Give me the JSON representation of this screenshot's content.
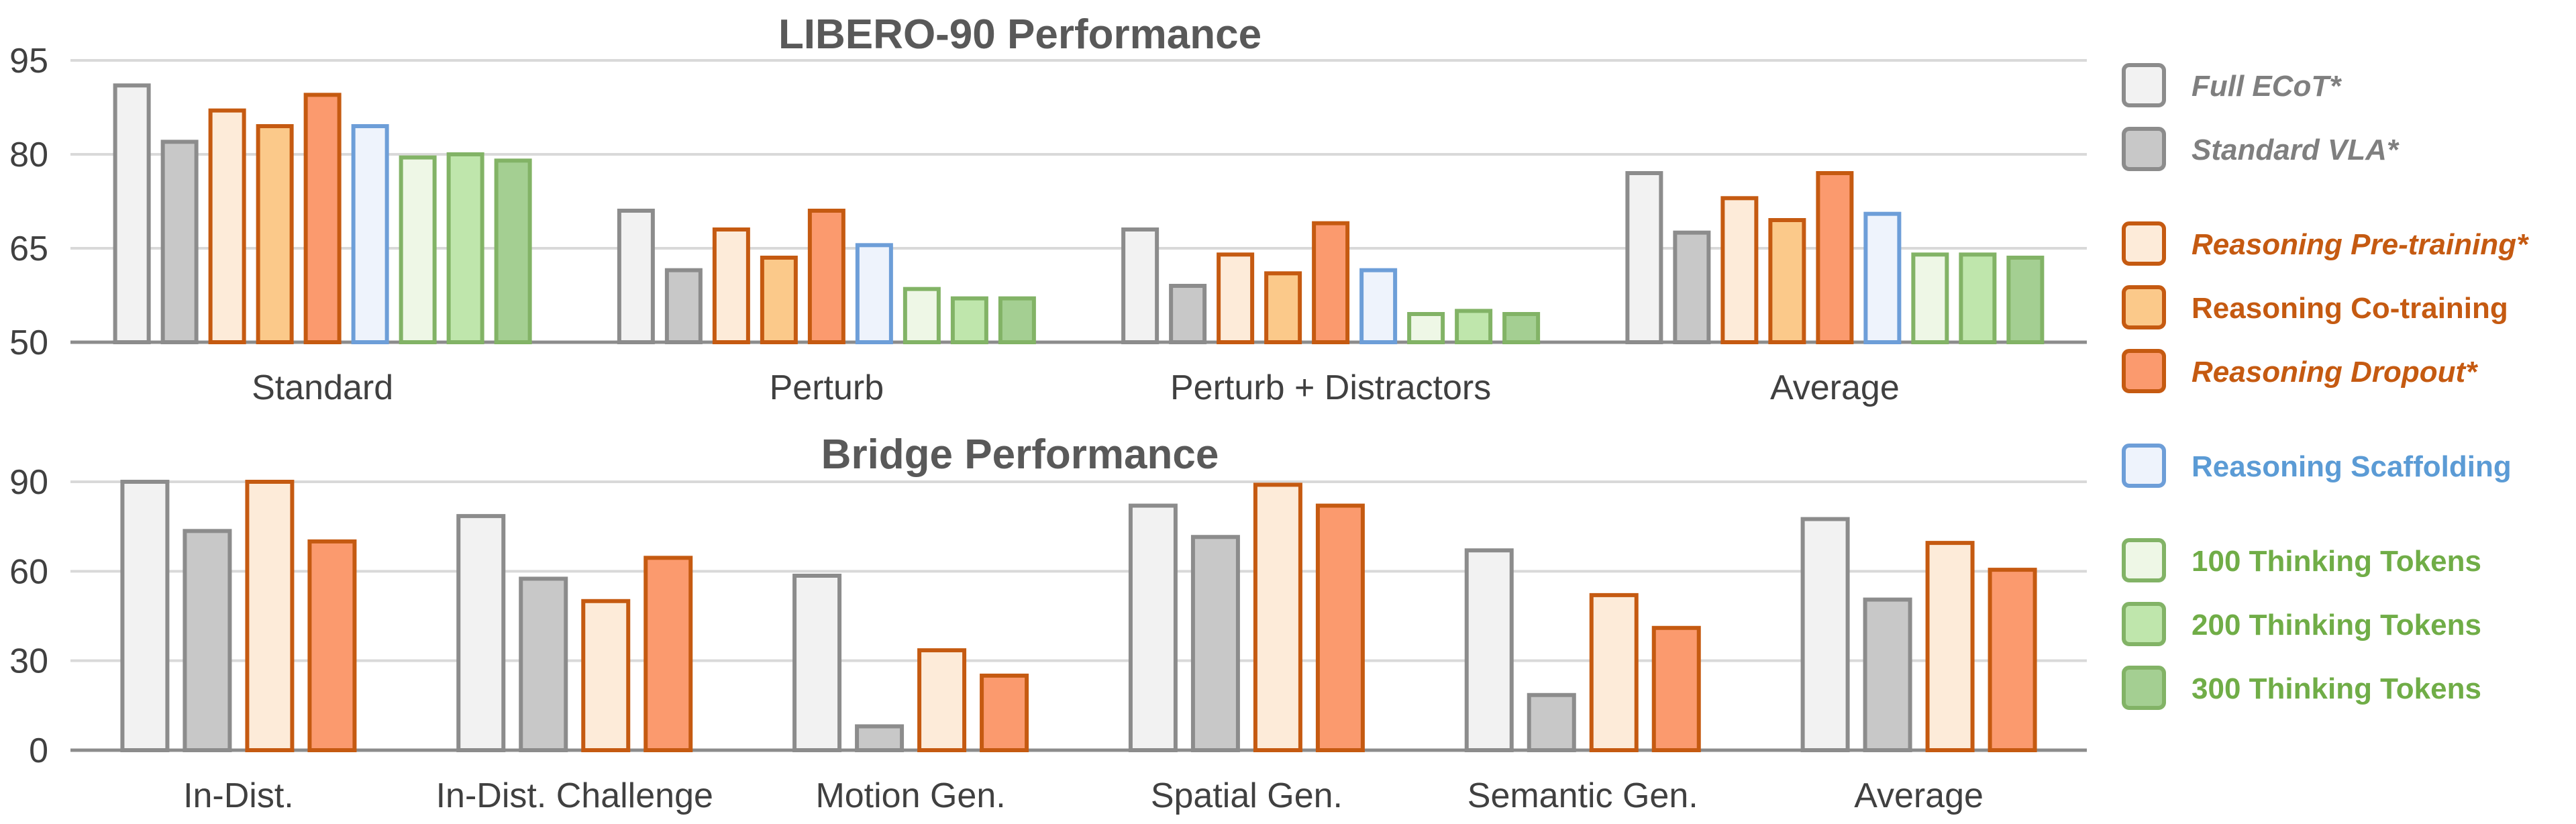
{
  "colors": {
    "full_ecot": {
      "fill": "#f2f2f2",
      "stroke": "#8c8c8c"
    },
    "standard_vla": {
      "fill": "#c8c8c8",
      "stroke": "#8c8c8c"
    },
    "reasoning_pretraining": {
      "fill": "#fdebd9",
      "stroke": "#c55a11"
    },
    "reasoning_cotraining": {
      "fill": "#fbc98a",
      "stroke": "#c55a11"
    },
    "reasoning_dropout": {
      "fill": "#fb9a6e",
      "stroke": "#c55a11"
    },
    "reasoning_scaffolding": {
      "fill": "#eef3fc",
      "stroke": "#6d9ed8"
    },
    "thinking_100": {
      "fill": "#eef7e6",
      "stroke": "#82b366"
    },
    "thinking_200": {
      "fill": "#bfe6ac",
      "stroke": "#82b366"
    },
    "thinking_300": {
      "fill": "#a4cf92",
      "stroke": "#82b366"
    },
    "grid": "#d9d9d9",
    "axis": "#8c8c8c"
  },
  "legend": [
    {
      "key": "full_ecot",
      "label": "Full ECoT*",
      "text_color": "#7f7f7f",
      "italic": true
    },
    {
      "key": "standard_vla",
      "label": "Standard VLA*",
      "text_color": "#7f7f7f",
      "italic": true
    },
    {
      "key": "reasoning_pretraining",
      "label": "Reasoning Pre-training*",
      "text_color": "#c55a11",
      "italic": true
    },
    {
      "key": "reasoning_cotraining",
      "label": "Reasoning Co-training",
      "text_color": "#c55a11",
      "italic": false
    },
    {
      "key": "reasoning_dropout",
      "label": "Reasoning Dropout*",
      "text_color": "#c55a11",
      "italic": true
    },
    {
      "key": "reasoning_scaffolding",
      "label": "Reasoning Scaffolding",
      "text_color": "#5b9bd5",
      "italic": false
    },
    {
      "key": "thinking_100",
      "label": "100 Thinking Tokens",
      "text_color": "#70ad47",
      "italic": false
    },
    {
      "key": "thinking_200",
      "label": "200 Thinking Tokens",
      "text_color": "#70ad47",
      "italic": false
    },
    {
      "key": "thinking_300",
      "label": "300 Thinking Tokens",
      "text_color": "#70ad47",
      "italic": false
    }
  ],
  "chart_data": [
    {
      "type": "bar",
      "title": "LIBERO-90 Performance",
      "categories": [
        "Standard",
        "Perturb",
        "Perturb + Distractors",
        "Average"
      ],
      "ylim": [
        50,
        95
      ],
      "yticks": [
        50,
        65,
        80,
        95
      ],
      "grid": true,
      "legend_position": "right",
      "series": [
        {
          "name": "Full ECoT*",
          "key": "full_ecot",
          "values": [
            91,
            71,
            68,
            77
          ]
        },
        {
          "name": "Standard VLA*",
          "key": "standard_vla",
          "values": [
            82,
            61.5,
            59,
            67.5
          ]
        },
        {
          "name": "Reasoning Pre-training*",
          "key": "reasoning_pretraining",
          "values": [
            87,
            68,
            64,
            73
          ]
        },
        {
          "name": "Reasoning Co-training",
          "key": "reasoning_cotraining",
          "values": [
            84.5,
            63.5,
            61,
            69.5
          ]
        },
        {
          "name": "Reasoning Dropout*",
          "key": "reasoning_dropout",
          "values": [
            89.5,
            71,
            69,
            77
          ]
        },
        {
          "name": "Reasoning Scaffolding",
          "key": "reasoning_scaffolding",
          "values": [
            84.5,
            65.5,
            61.5,
            70.5
          ]
        },
        {
          "name": "100 Thinking Tokens",
          "key": "thinking_100",
          "values": [
            79.5,
            58.5,
            54.5,
            64
          ]
        },
        {
          "name": "200 Thinking Tokens",
          "key": "thinking_200",
          "values": [
            80,
            57,
            55,
            64
          ]
        },
        {
          "name": "300 Thinking Tokens",
          "key": "thinking_300",
          "values": [
            79,
            57,
            54.5,
            63.5
          ]
        }
      ]
    },
    {
      "type": "bar",
      "title": "Bridge Performance",
      "categories": [
        "In-Dist.",
        "In-Dist. Challenge",
        "Motion Gen.",
        "Spatial Gen.",
        "Semantic Gen.",
        "Average"
      ],
      "ylim": [
        0,
        90
      ],
      "yticks": [
        0,
        30,
        60,
        90
      ],
      "grid": true,
      "legend_position": "right",
      "series": [
        {
          "name": "Full ECoT*",
          "key": "full_ecot",
          "values": [
            90,
            78.5,
            58.5,
            82,
            67,
            77.5
          ]
        },
        {
          "name": "Standard VLA*",
          "key": "standard_vla",
          "values": [
            73.5,
            57.5,
            8,
            71.5,
            18.5,
            50.5
          ]
        },
        {
          "name": "Reasoning Pre-training*",
          "key": "reasoning_pretraining",
          "values": [
            90,
            50,
            33.5,
            89,
            52,
            69.5
          ]
        },
        {
          "name": "Reasoning Dropout*",
          "key": "reasoning_dropout",
          "values": [
            70,
            64.5,
            25,
            82,
            41,
            60.5
          ]
        }
      ]
    }
  ]
}
